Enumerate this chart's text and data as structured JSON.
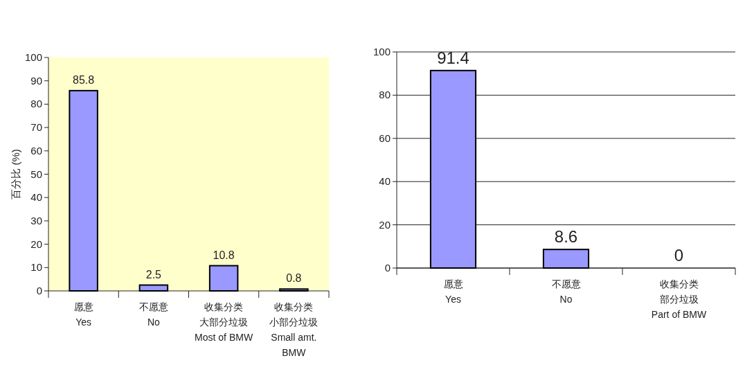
{
  "chart_data": [
    {
      "type": "bar",
      "categories": [
        "愿意\nYes",
        "不愿意\nNo",
        "收集分类大部分垃圾\nMost of BMW",
        "收集分类小部分垃圾\nSmall amt.\nBMW"
      ],
      "ylabel": "百分比 (%)",
      "values": [
        85.8,
        2.5,
        10.8,
        0.8
      ],
      "color": "#9999ff",
      "ylim": [
        0,
        100
      ],
      "yticks": [
        0,
        10,
        20,
        30,
        40,
        50,
        60,
        70,
        80,
        90,
        100
      ],
      "data_labels": true,
      "grid": false
    },
    {
      "type": "bar",
      "categories": [
        "愿意\nYes",
        "不愿意\nNo",
        "收集分类部分垃圾\nPart of BMW"
      ],
      "values": [
        91.4,
        8.6,
        0
      ],
      "data_labels": true,
      "color": "#9999ff",
      "ylim": [
        0,
        100
      ],
      "yticks": [
        0,
        20,
        40,
        60,
        80,
        100
      ],
      "grid": "y"
    }
  ]
}
